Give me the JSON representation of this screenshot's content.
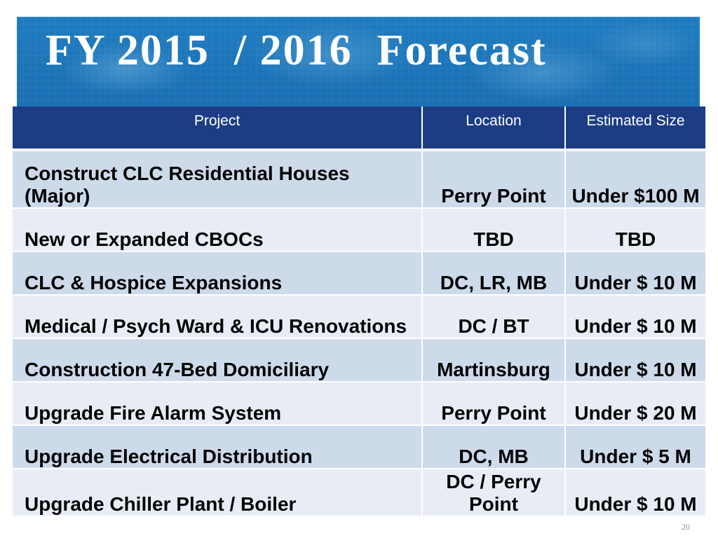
{
  "slide": {
    "title": "FY 2015  / 2016  Forecast",
    "page_number": "20"
  },
  "table": {
    "headers": [
      "Project",
      "Location",
      "Estimated Size"
    ],
    "rows": [
      {
        "project": "Construct CLC Residential Houses (Major)",
        "location": "Perry Point",
        "size": "Under $100 M"
      },
      {
        "project": "New or Expanded CBOCs",
        "location": "TBD",
        "size": "TBD"
      },
      {
        "project": "CLC & Hospice Expansions",
        "location": "DC, LR, MB",
        "size": "Under $ 10 M"
      },
      {
        "project": "Medical / Psych Ward & ICU Renovations",
        "location": "DC / BT",
        "size": "Under $ 10 M"
      },
      {
        "project": "Construction 47-Bed Domiciliary",
        "location": "Martinsburg",
        "size": "Under $ 10 M"
      },
      {
        "project": "Upgrade Fire Alarm System",
        "location": "Perry Point",
        "size": "Under $ 20 M"
      },
      {
        "project": "Upgrade Electrical Distribution",
        "location": "DC, MB",
        "size": "Under $ 5 M"
      },
      {
        "project": "Upgrade Chiller Plant / Boiler",
        "location": "DC / Perry Point",
        "size": "Under $ 10 M"
      }
    ]
  },
  "theme": {
    "banner_blue": "#1f7cc0",
    "banner_blue_dark": "#1a6fb3",
    "header_navy": "#1c3c84",
    "band_dark": "#cddaea",
    "band_light": "#e8edf5",
    "page_number_gray": "#8c8c8c"
  }
}
